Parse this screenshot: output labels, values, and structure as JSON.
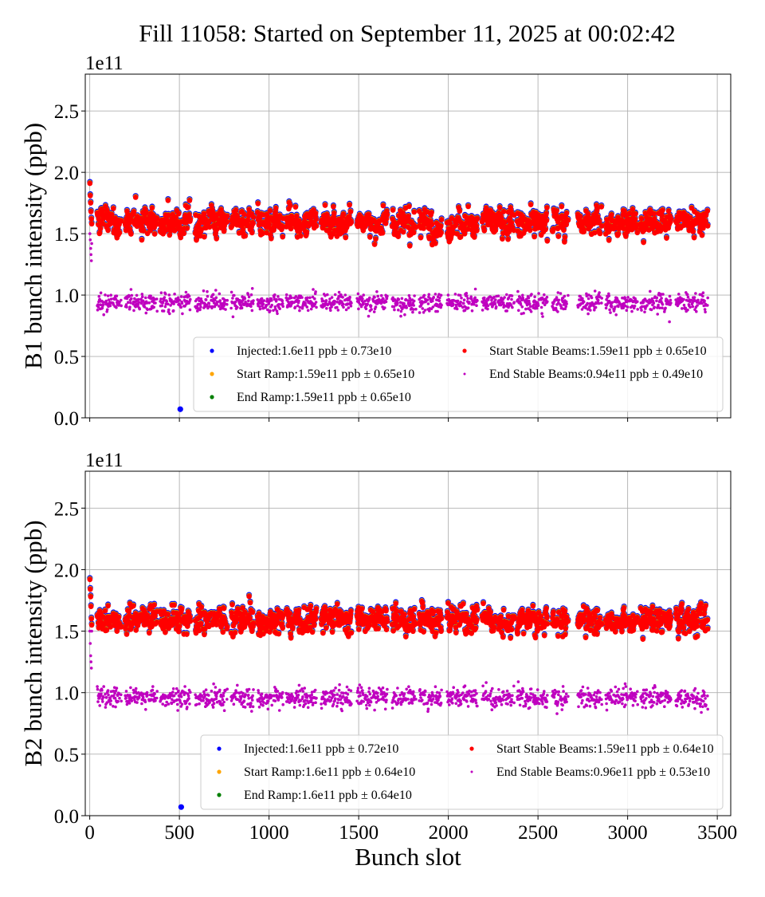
{
  "title": "Fill 11058: Started on September 11, 2025 at 00:02:42",
  "chart_data": [
    {
      "type": "scatter",
      "ylabel": "B1 bunch intensity (ppb)",
      "xlabel": "",
      "y_multiplier": "1e11",
      "xlim": [
        -25,
        3575
      ],
      "ylim": [
        0,
        2.8
      ],
      "xticks": [
        0,
        500,
        1000,
        1500,
        2000,
        2500,
        3000,
        3500
      ],
      "xtick_labels_shown": false,
      "yticks": [
        0.0,
        0.5,
        1.0,
        1.5,
        2.0,
        2.5
      ],
      "ytick_labels": [
        "0.0",
        "0.5",
        "1.0",
        "1.5",
        "2.0",
        "2.5"
      ],
      "grid": true,
      "legend_placement": "lower-right",
      "series": [
        {
          "name": "Injected:1.6e11 ppb ± 0.73e10",
          "color": "#0000ff",
          "mean": 1.6,
          "std": 0.073
        },
        {
          "name": "Start Ramp:1.59e11 ppb ± 0.65e10",
          "color": "#ffa500",
          "mean": 1.59,
          "std": 0.065
        },
        {
          "name": "End Ramp:1.59e11 ppb ± 0.65e10",
          "color": "#008000",
          "mean": 1.59,
          "std": 0.065
        },
        {
          "name": "Start Stable Beams:1.59e11 ppb ± 0.65e10",
          "color": "#ff0000",
          "mean": 1.59,
          "std": 0.065
        },
        {
          "name": "End Stable Beams:0.94e11 ppb ± 0.49e10",
          "color": "#bf00bf",
          "mean": 0.94,
          "std": 0.049
        }
      ],
      "leading_bunches": {
        "slots": [
          1,
          3,
          5,
          7,
          9,
          11
        ],
        "values": [
          1.91,
          1.81,
          1.75,
          1.68,
          1.62,
          1.58
        ],
        "end_values": [
          1.5,
          1.45,
          1.38,
          1.33,
          1.28,
          1.42
        ]
      },
      "bunch_trains": [
        [
          42,
          176
        ],
        [
          198,
          376
        ],
        [
          393,
          567
        ],
        [
          589,
          767
        ],
        [
          789,
          913
        ],
        [
          936,
          1078
        ],
        [
          1096,
          1269
        ],
        [
          1291,
          1464
        ],
        [
          1491,
          1664
        ],
        [
          1687,
          1820
        ],
        [
          1838,
          1967
        ],
        [
          1993,
          2167
        ],
        [
          2189,
          2367
        ],
        [
          2384,
          2558
        ],
        [
          2580,
          2669
        ],
        [
          2722,
          2856
        ],
        [
          2878,
          3056
        ],
        [
          3073,
          3247
        ],
        [
          3269,
          3447
        ]
      ],
      "outliers": [
        {
          "series": "Injected",
          "slot": 505,
          "value": 0.07
        }
      ]
    },
    {
      "type": "scatter",
      "ylabel": "B2 bunch intensity (ppb)",
      "xlabel": "Bunch slot",
      "y_multiplier": "1e11",
      "xlim": [
        -25,
        3575
      ],
      "ylim": [
        0,
        2.8
      ],
      "xticks": [
        0,
        500,
        1000,
        1500,
        2000,
        2500,
        3000,
        3500
      ],
      "xtick_labels": [
        "0",
        "500",
        "1000",
        "1500",
        "2000",
        "2500",
        "3000",
        "3500"
      ],
      "yticks": [
        0.0,
        0.5,
        1.0,
        1.5,
        2.0,
        2.5
      ],
      "ytick_labels": [
        "0.0",
        "0.5",
        "1.0",
        "1.5",
        "2.0",
        "2.5"
      ],
      "grid": true,
      "legend_placement": "lower-right",
      "series": [
        {
          "name": "Injected:1.6e11 ppb ± 0.72e10",
          "color": "#0000ff",
          "mean": 1.6,
          "std": 0.072
        },
        {
          "name": "Start Ramp:1.6e11 ppb ± 0.64e10",
          "color": "#ffa500",
          "mean": 1.6,
          "std": 0.064
        },
        {
          "name": "End Ramp:1.6e11 ppb ± 0.64e10",
          "color": "#008000",
          "mean": 1.6,
          "std": 0.064
        },
        {
          "name": "Start Stable Beams:1.59e11 ppb ± 0.64e10",
          "color": "#ff0000",
          "mean": 1.59,
          "std": 0.064
        },
        {
          "name": "End Stable Beams:0.96e11 ppb ± 0.53e10",
          "color": "#bf00bf",
          "mean": 0.96,
          "std": 0.053
        }
      ],
      "leading_bunches": {
        "slots": [
          1,
          3,
          5,
          7,
          9,
          11
        ],
        "values": [
          1.92,
          1.84,
          1.78,
          1.7,
          1.6,
          1.55
        ],
        "end_values": [
          1.5,
          1.4,
          1.3,
          1.25,
          1.2,
          1.5
        ]
      },
      "bunch_trains": [
        [
          42,
          176
        ],
        [
          198,
          376
        ],
        [
          393,
          567
        ],
        [
          589,
          767
        ],
        [
          789,
          913
        ],
        [
          936,
          1078
        ],
        [
          1096,
          1269
        ],
        [
          1291,
          1464
        ],
        [
          1491,
          1664
        ],
        [
          1687,
          1820
        ],
        [
          1838,
          1967
        ],
        [
          1993,
          2167
        ],
        [
          2189,
          2367
        ],
        [
          2384,
          2558
        ],
        [
          2580,
          2669
        ],
        [
          2722,
          2856
        ],
        [
          2878,
          3056
        ],
        [
          3073,
          3247
        ],
        [
          3269,
          3447
        ]
      ],
      "outliers": [
        {
          "series": "Injected",
          "slot": 510,
          "value": 0.07
        }
      ]
    }
  ]
}
